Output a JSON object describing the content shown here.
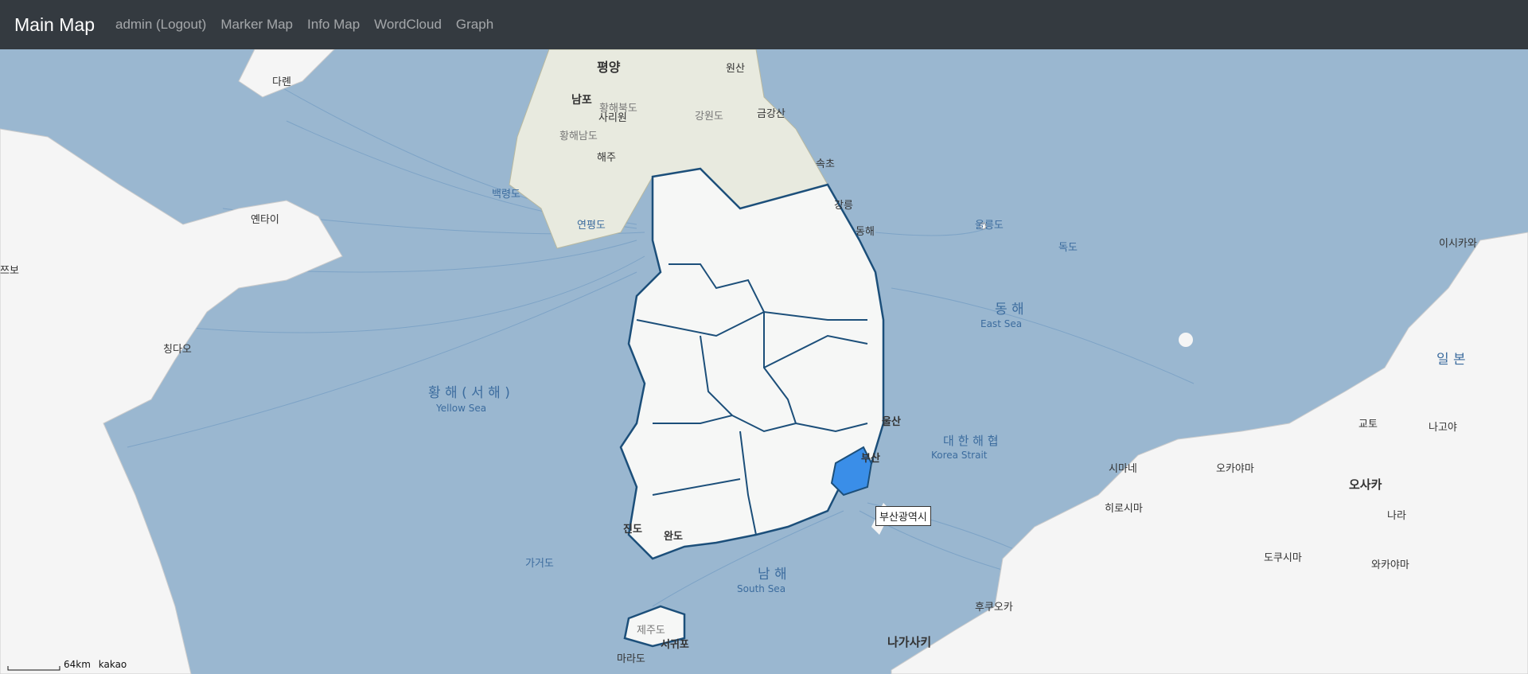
{
  "nav": {
    "brand": "Main Map",
    "links": [
      "admin (Logout)",
      "Marker Map",
      "Info Map",
      "WordCloud",
      "Graph"
    ]
  },
  "map": {
    "tooltip": "부산광역시",
    "highlight_color": "#3a8ee8",
    "scale": "64km",
    "provider": "kakao",
    "seas": {
      "yellow_sea_ko": "황 해 ( 서 해 )",
      "yellow_sea_en": "Yellow Sea",
      "east_sea_ko": "동 해",
      "east_sea_en": "East Sea",
      "korea_strait_ko": "대 한 해 협",
      "korea_strait_en": "Korea Strait",
      "south_sea_ko": "남 해",
      "south_sea_en": "South Sea"
    },
    "places": {
      "pyongyang": "평양",
      "nampo": "남포",
      "sariwon": "사리원",
      "haeju": "해주",
      "wonsan": "원산",
      "hwanghaebukdo": "황해북도",
      "hwanghaenamdo": "황해남도",
      "gangwondo_n": "강원도",
      "geumgangsan": "금강산",
      "sokcho": "속초",
      "gangneung": "강릉",
      "donghae": "동해",
      "ulleungdo": "울릉도",
      "dokdo": "독도",
      "baengnyeongdo": "백령도",
      "yeonpyeongdo": "연평도",
      "dalian": "다롄",
      "yantai": "옌타이",
      "qingdao": "칭다오",
      "ulsan": "울산",
      "busan": "부산",
      "jindo": "진도",
      "wando": "완도",
      "gageodo": "가거도",
      "jejudo": "제주도",
      "seogwipo": "서귀포",
      "marado": "마라도",
      "japan": "일 본",
      "oki": "이시카와",
      "osaka": "오사카",
      "kyoto": "교토",
      "nagoya": "나고야",
      "nara": "나라",
      "wakayama": "와카야마",
      "okayama": "오카야마",
      "hiroshima": "히로시마",
      "shimane": "시마네",
      "kochi": "도쿠시마",
      "fukuoka": "후쿠오카",
      "nagasaki": "나가사키",
      "zibo": "쯔보"
    }
  }
}
